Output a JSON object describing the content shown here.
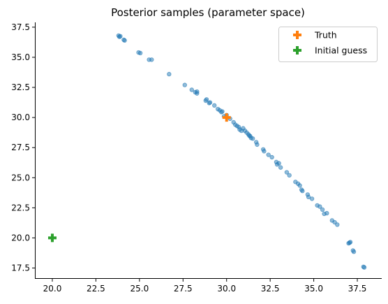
{
  "chart_data": {
    "type": "scatter",
    "title": "Posterior samples (parameter space)",
    "xlabel": "",
    "ylabel": "",
    "xlim": [
      19.0,
      38.9
    ],
    "ylim": [
      16.6,
      37.9
    ],
    "xticks": [
      "20.0",
      "22.5",
      "25.0",
      "27.5",
      "30.0",
      "32.5",
      "35.0",
      "37.5"
    ],
    "yticks": [
      "17.5",
      "20.0",
      "22.5",
      "25.0",
      "27.5",
      "30.0",
      "32.5",
      "35.0",
      "37.5"
    ],
    "xtick_values": [
      20.0,
      22.5,
      25.0,
      27.5,
      30.0,
      32.5,
      35.0,
      37.5
    ],
    "ytick_values": [
      17.5,
      20.0,
      22.5,
      25.0,
      27.5,
      30.0,
      32.5,
      35.0,
      37.5
    ],
    "grid": false,
    "legend_position": "top-right",
    "series": [
      {
        "marker": "circle",
        "color": "#1f77b4",
        "points": [
          [
            23.8,
            36.8
          ],
          [
            23.85,
            36.7
          ],
          [
            23.9,
            36.75
          ],
          [
            24.1,
            36.45
          ],
          [
            24.15,
            36.4
          ],
          [
            24.95,
            35.4
          ],
          [
            25.05,
            35.35
          ],
          [
            25.55,
            34.8
          ],
          [
            25.7,
            34.8
          ],
          [
            26.7,
            33.6
          ],
          [
            27.6,
            32.7
          ],
          [
            28.0,
            32.3
          ],
          [
            28.2,
            32.1
          ],
          [
            28.3,
            32.0
          ],
          [
            28.3,
            32.15
          ],
          [
            28.8,
            31.4
          ],
          [
            28.85,
            31.5
          ],
          [
            29.0,
            31.2
          ],
          [
            29.05,
            31.25
          ],
          [
            29.3,
            31.0
          ],
          [
            29.5,
            30.7
          ],
          [
            29.6,
            30.6
          ],
          [
            29.7,
            30.45
          ],
          [
            29.75,
            30.5
          ],
          [
            29.85,
            30.1
          ],
          [
            30.0,
            30.2
          ],
          [
            30.2,
            29.9
          ],
          [
            30.4,
            29.6
          ],
          [
            30.5,
            29.4
          ],
          [
            30.6,
            29.3
          ],
          [
            30.7,
            29.2
          ],
          [
            30.75,
            29.0
          ],
          [
            30.85,
            28.9
          ],
          [
            30.95,
            29.1
          ],
          [
            31.05,
            28.9
          ],
          [
            31.15,
            28.75
          ],
          [
            31.25,
            28.6
          ],
          [
            31.3,
            28.5
          ],
          [
            31.35,
            28.45
          ],
          [
            31.4,
            28.3
          ],
          [
            31.5,
            28.25
          ],
          [
            31.7,
            27.95
          ],
          [
            31.75,
            27.75
          ],
          [
            32.1,
            27.35
          ],
          [
            32.15,
            27.2
          ],
          [
            32.4,
            26.9
          ],
          [
            32.6,
            26.7
          ],
          [
            32.85,
            26.3
          ],
          [
            32.9,
            26.1
          ],
          [
            33.0,
            26.2
          ],
          [
            33.1,
            25.85
          ],
          [
            33.45,
            25.45
          ],
          [
            33.6,
            25.2
          ],
          [
            33.95,
            24.65
          ],
          [
            34.1,
            24.5
          ],
          [
            34.2,
            24.35
          ],
          [
            34.3,
            24.0
          ],
          [
            34.35,
            23.9
          ],
          [
            34.65,
            23.6
          ],
          [
            34.7,
            23.4
          ],
          [
            34.9,
            23.25
          ],
          [
            35.2,
            22.7
          ],
          [
            35.35,
            22.6
          ],
          [
            35.5,
            22.35
          ],
          [
            35.6,
            22.0
          ],
          [
            35.75,
            22.05
          ],
          [
            36.05,
            21.45
          ],
          [
            36.2,
            21.3
          ],
          [
            36.35,
            21.1
          ],
          [
            37.0,
            19.55
          ],
          [
            37.05,
            19.6
          ],
          [
            37.1,
            19.65
          ],
          [
            37.25,
            18.95
          ],
          [
            37.3,
            18.85
          ],
          [
            37.85,
            17.6
          ],
          [
            37.9,
            17.55
          ]
        ]
      },
      {
        "name": "Truth",
        "marker": "plus",
        "color": "#ff7f0e",
        "points": [
          [
            30.0,
            30.0
          ]
        ]
      },
      {
        "name": "Initial guess",
        "marker": "plus",
        "color": "#2ca02c",
        "points": [
          [
            20.0,
            20.0
          ]
        ]
      }
    ]
  }
}
